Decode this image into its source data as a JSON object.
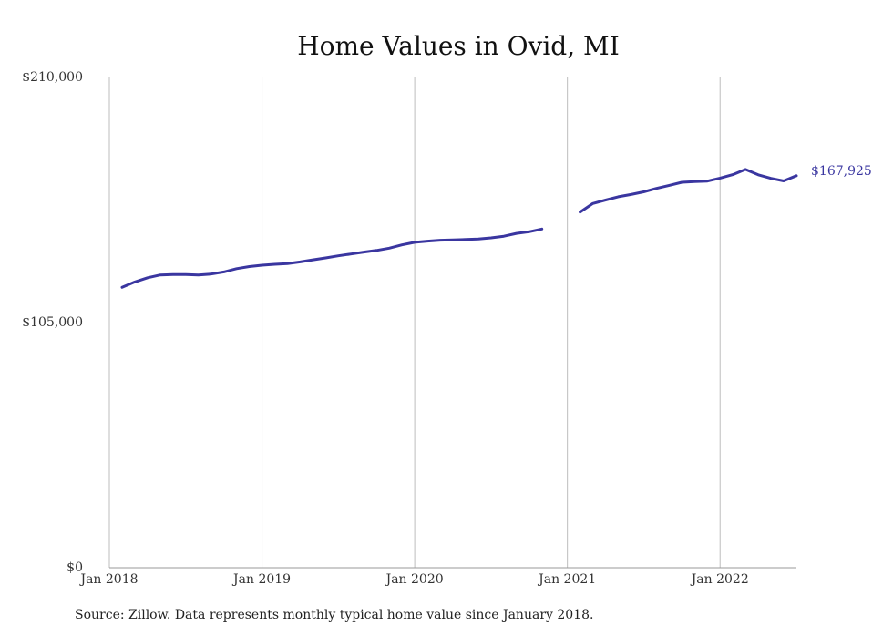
{
  "chart_data": {
    "type": "line",
    "title": "Home Values in Ovid, MI",
    "xlabel": "",
    "ylabel": "",
    "ylim": [
      0,
      210000
    ],
    "xlim": [
      "2018-01",
      "2022-07"
    ],
    "y_ticks": [
      {
        "value": 0,
        "label": "$0"
      },
      {
        "value": 105000,
        "label": "$105,000"
      },
      {
        "value": 210000,
        "label": "$210,000"
      }
    ],
    "x_ticks": [
      {
        "value": "2018-01",
        "label": "Jan 2018"
      },
      {
        "value": "2019-01",
        "label": "Jan 2019"
      },
      {
        "value": "2020-01",
        "label": "Jan 2020"
      },
      {
        "value": "2021-01",
        "label": "Jan 2021"
      },
      {
        "value": "2022-01",
        "label": "Jan 2022"
      }
    ],
    "grid": "vertical",
    "color": "#3a36a0",
    "end_label": "$167,925",
    "series": [
      {
        "segments": [
          [
            {
              "x": "2018-02",
              "y": 120100
            },
            {
              "x": "2018-03",
              "y": 122400
            },
            {
              "x": "2018-04",
              "y": 124200
            },
            {
              "x": "2018-05",
              "y": 125400
            },
            {
              "x": "2018-06",
              "y": 125600
            },
            {
              "x": "2018-07",
              "y": 125600
            },
            {
              "x": "2018-08",
              "y": 125400
            },
            {
              "x": "2018-09",
              "y": 125800
            },
            {
              "x": "2018-10",
              "y": 126700
            },
            {
              "x": "2018-11",
              "y": 128100
            },
            {
              "x": "2018-12",
              "y": 129000
            },
            {
              "x": "2019-01",
              "y": 129600
            },
            {
              "x": "2019-02",
              "y": 130000
            },
            {
              "x": "2019-03",
              "y": 130300
            },
            {
              "x": "2019-04",
              "y": 131000
            },
            {
              "x": "2019-05",
              "y": 131900
            },
            {
              "x": "2019-06",
              "y": 132700
            },
            {
              "x": "2019-07",
              "y": 133600
            },
            {
              "x": "2019-08",
              "y": 134400
            },
            {
              "x": "2019-09",
              "y": 135200
            },
            {
              "x": "2019-10",
              "y": 135900
            },
            {
              "x": "2019-11",
              "y": 136900
            },
            {
              "x": "2019-12",
              "y": 138300
            },
            {
              "x": "2020-01",
              "y": 139400
            },
            {
              "x": "2020-02",
              "y": 139900
            },
            {
              "x": "2020-03",
              "y": 140300
            },
            {
              "x": "2020-04",
              "y": 140400
            },
            {
              "x": "2020-05",
              "y": 140600
            },
            {
              "x": "2020-06",
              "y": 140800
            },
            {
              "x": "2020-07",
              "y": 141300
            },
            {
              "x": "2020-08",
              "y": 142000
            },
            {
              "x": "2020-09",
              "y": 143200
            },
            {
              "x": "2020-10",
              "y": 143900
            },
            {
              "x": "2020-11",
              "y": 145100
            }
          ],
          [
            {
              "x": "2021-02",
              "y": 152300
            },
            {
              "x": "2021-03",
              "y": 156000
            },
            {
              "x": "2021-04",
              "y": 157500
            },
            {
              "x": "2021-05",
              "y": 158900
            },
            {
              "x": "2021-06",
              "y": 159900
            },
            {
              "x": "2021-07",
              "y": 161000
            },
            {
              "x": "2021-08",
              "y": 162500
            },
            {
              "x": "2021-09",
              "y": 163800
            },
            {
              "x": "2021-10",
              "y": 165100
            },
            {
              "x": "2021-11",
              "y": 165400
            },
            {
              "x": "2021-12",
              "y": 165600
            },
            {
              "x": "2022-01",
              "y": 166900
            },
            {
              "x": "2022-02",
              "y": 168400
            },
            {
              "x": "2022-03",
              "y": 170600
            },
            {
              "x": "2022-04",
              "y": 168300
            },
            {
              "x": "2022-05",
              "y": 166800
            },
            {
              "x": "2022-06",
              "y": 165700
            },
            {
              "x": "2022-07",
              "y": 167925
            }
          ]
        ]
      }
    ]
  },
  "footer": {
    "source": "Source: Zillow. Data represents monthly typical home value since January 2018."
  }
}
